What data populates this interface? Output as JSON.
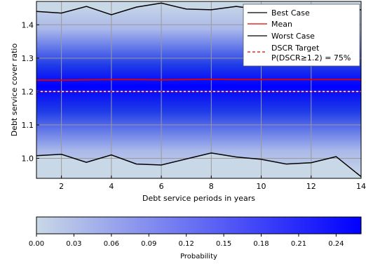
{
  "chart_data": [
    {
      "type": "area",
      "title": "",
      "xlabel": "Debt service periods in years",
      "ylabel": "Debt service cover ratio",
      "xlim": [
        1,
        14
      ],
      "ylim": [
        0.94,
        1.47
      ],
      "x_ticks": [
        2,
        4,
        6,
        8,
        10,
        12,
        14
      ],
      "y_ticks": [
        1.0,
        1.1,
        1.2,
        1.3,
        1.4
      ],
      "x_tick_labels": [
        "2",
        "4",
        "6",
        "8",
        "10",
        "12",
        "14"
      ],
      "y_tick_labels": [
        "1.0",
        "1.1",
        "1.2",
        "1.3",
        "1.4"
      ],
      "grid": true,
      "legend_position": "top-right",
      "x": [
        1,
        2,
        3,
        4,
        5,
        6,
        7,
        8,
        9,
        10,
        11,
        12,
        13,
        14
      ],
      "series": [
        {
          "name": "Best Case",
          "color": "#000000",
          "values": [
            1.44,
            1.435,
            1.455,
            1.43,
            1.453,
            1.465,
            1.447,
            1.445,
            1.455,
            1.445,
            1.445,
            1.445,
            1.445,
            1.445
          ]
        },
        {
          "name": "Mean",
          "color": "#e00000",
          "values": [
            1.234,
            1.234,
            1.235,
            1.236,
            1.236,
            1.235,
            1.236,
            1.237,
            1.236,
            1.236,
            1.236,
            1.236,
            1.236,
            1.236
          ]
        },
        {
          "name": "Worst Case",
          "color": "#000000",
          "values": [
            1.008,
            1.012,
            0.988,
            1.01,
            0.983,
            0.98,
            0.998,
            1.016,
            1.004,
            0.997,
            0.983,
            0.987,
            1.005,
            0.945
          ]
        }
      ],
      "target": {
        "name": "DSCR Target",
        "value": 1.2,
        "color": "#e00000",
        "style": "dashed"
      },
      "legend_note": "P(DSCR≥1.2) = 75%"
    },
    {
      "type": "colorbar",
      "xlabel": "Probability",
      "range": [
        0,
        0.26
      ],
      "ticks": [
        0.0,
        0.03,
        0.06,
        0.09,
        0.12,
        0.15,
        0.18,
        0.21,
        0.24
      ],
      "tick_labels": [
        "0.00",
        "0.03",
        "0.06",
        "0.09",
        "0.12",
        "0.15",
        "0.18",
        "0.21",
        "0.24"
      ],
      "color_low": "#c9d8e6",
      "color_high": "#0000ff"
    }
  ]
}
